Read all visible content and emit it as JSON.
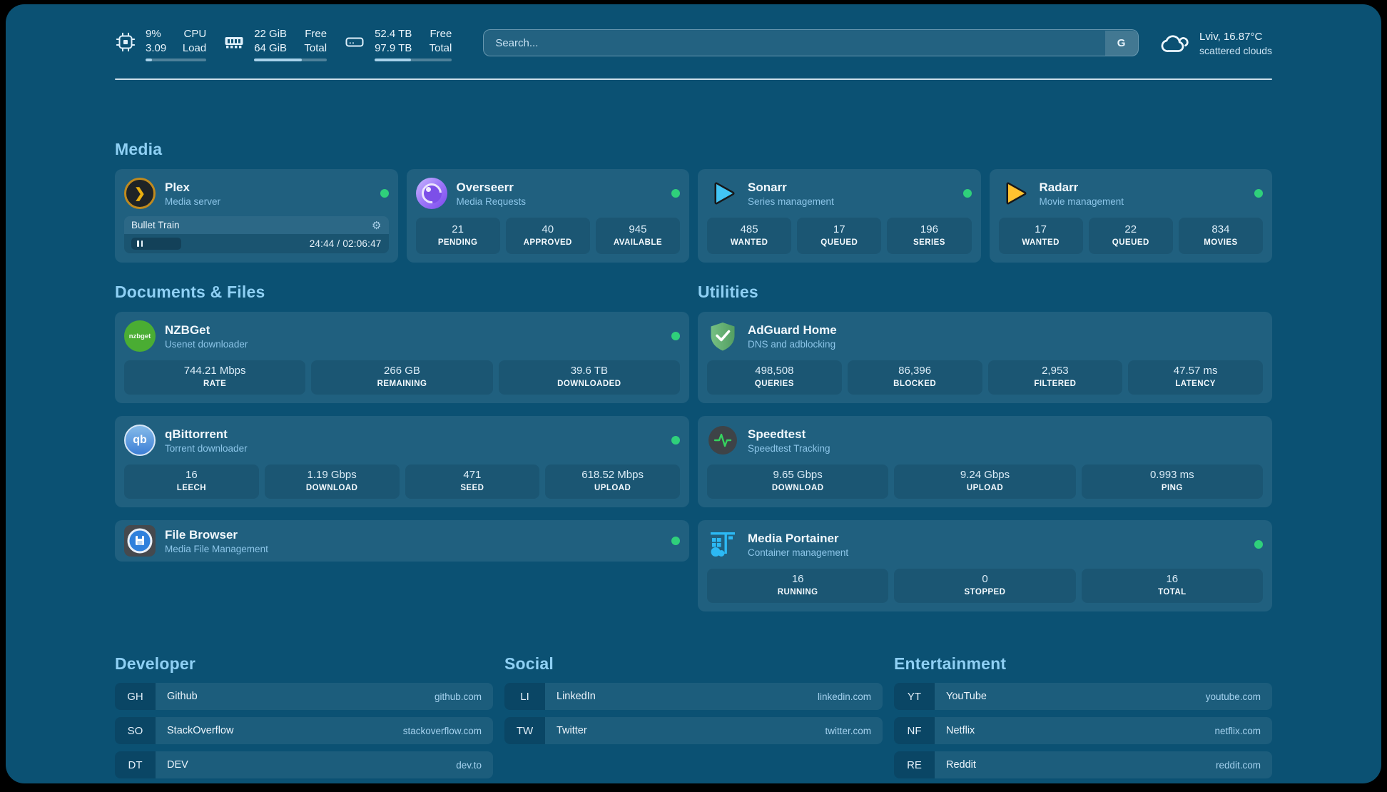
{
  "colors": {
    "page_bg": "#0B5173",
    "heading": "#8FD0F4",
    "status_ok": "#2FD07B"
  },
  "topbar": {
    "resources": [
      {
        "icon": "cpu-icon",
        "col1": [
          "9%",
          "3.09"
        ],
        "col2": [
          "CPU",
          "Load"
        ],
        "fill_pct": 11
      },
      {
        "icon": "ram-icon",
        "col1": [
          "22 GiB",
          "64 GiB"
        ],
        "col2": [
          "Free",
          "Total"
        ],
        "fill_pct": 66
      },
      {
        "icon": "disk-icon",
        "col1": [
          "52.4 TB",
          "97.9 TB"
        ],
        "col2": [
          "Free",
          "Total"
        ],
        "fill_pct": 47
      }
    ],
    "search": {
      "placeholder": "Search...",
      "button_label": "G"
    },
    "weather": {
      "line1": "Lviv, 16.87°C",
      "line2": "scattered clouds"
    }
  },
  "sections": {
    "media": "Media",
    "documents": "Documents & Files",
    "utilities": "Utilities",
    "developer": "Developer",
    "social": "Social",
    "entertainment": "Entertainment"
  },
  "icons": {
    "plex_chevron": "❯",
    "gear": "⚙"
  },
  "services": {
    "plex": {
      "title": "Plex",
      "subtitle": "Media server",
      "now_playing": "Bullet Train",
      "time": "24:44 / 02:06:47",
      "progress_pct": 20
    },
    "overseerr": {
      "title": "Overseerr",
      "subtitle": "Media Requests",
      "stats": [
        {
          "value": "21",
          "label": "PENDING"
        },
        {
          "value": "40",
          "label": "APPROVED"
        },
        {
          "value": "945",
          "label": "AVAILABLE"
        }
      ]
    },
    "sonarr": {
      "title": "Sonarr",
      "subtitle": "Series management",
      "stats": [
        {
          "value": "485",
          "label": "WANTED"
        },
        {
          "value": "17",
          "label": "QUEUED"
        },
        {
          "value": "196",
          "label": "SERIES"
        }
      ]
    },
    "radarr": {
      "title": "Radarr",
      "subtitle": "Movie management",
      "stats": [
        {
          "value": "17",
          "label": "WANTED"
        },
        {
          "value": "22",
          "label": "QUEUED"
        },
        {
          "value": "834",
          "label": "MOVIES"
        }
      ]
    },
    "nzbget": {
      "title": "NZBGet",
      "subtitle": "Usenet downloader",
      "icon_text": "nzbget",
      "stats": [
        {
          "value": "744.21 Mbps",
          "label": "RATE"
        },
        {
          "value": "266 GB",
          "label": "REMAINING"
        },
        {
          "value": "39.6 TB",
          "label": "DOWNLOADED"
        }
      ]
    },
    "qbittorrent": {
      "title": "qBittorrent",
      "subtitle": "Torrent downloader",
      "icon_text": "qb",
      "stats": [
        {
          "value": "16",
          "label": "LEECH"
        },
        {
          "value": "1.19 Gbps",
          "label": "DOWNLOAD"
        },
        {
          "value": "471",
          "label": "SEED"
        },
        {
          "value": "618.52 Mbps",
          "label": "UPLOAD"
        }
      ]
    },
    "filebrowser": {
      "title": "File Browser",
      "subtitle": "Media File Management"
    },
    "adguard": {
      "title": "AdGuard Home",
      "subtitle": "DNS and adblocking",
      "stats": [
        {
          "value": "498,508",
          "label": "QUERIES"
        },
        {
          "value": "86,396",
          "label": "BLOCKED"
        },
        {
          "value": "2,953",
          "label": "FILTERED"
        },
        {
          "value": "47.57 ms",
          "label": "LATENCY"
        }
      ]
    },
    "speedtest": {
      "title": "Speedtest",
      "subtitle": "Speedtest Tracking",
      "stats": [
        {
          "value": "9.65 Gbps",
          "label": "DOWNLOAD"
        },
        {
          "value": "9.24 Gbps",
          "label": "UPLOAD"
        },
        {
          "value": "0.993 ms",
          "label": "PING"
        }
      ]
    },
    "portainer": {
      "title": "Media Portainer",
      "subtitle": "Container management",
      "stats": [
        {
          "value": "16",
          "label": "RUNNING"
        },
        {
          "value": "0",
          "label": "STOPPED"
        },
        {
          "value": "16",
          "label": "TOTAL"
        }
      ]
    }
  },
  "bookmarks": {
    "developer": [
      {
        "abbr": "GH",
        "name": "Github",
        "url": "github.com"
      },
      {
        "abbr": "SO",
        "name": "StackOverflow",
        "url": "stackoverflow.com"
      },
      {
        "abbr": "DT",
        "name": "DEV",
        "url": "dev.to"
      }
    ],
    "social": [
      {
        "abbr": "LI",
        "name": "LinkedIn",
        "url": "linkedin.com"
      },
      {
        "abbr": "TW",
        "name": "Twitter",
        "url": "twitter.com"
      }
    ],
    "entertainment": [
      {
        "abbr": "YT",
        "name": "YouTube",
        "url": "youtube.com"
      },
      {
        "abbr": "NF",
        "name": "Netflix",
        "url": "netflix.com"
      },
      {
        "abbr": "RE",
        "name": "Reddit",
        "url": "reddit.com"
      }
    ]
  }
}
